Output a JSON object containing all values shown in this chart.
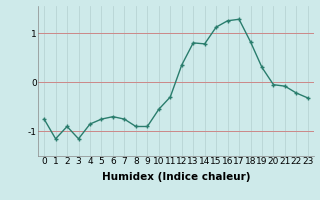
{
  "x": [
    0,
    1,
    2,
    3,
    4,
    5,
    6,
    7,
    8,
    9,
    10,
    11,
    12,
    13,
    14,
    15,
    16,
    17,
    18,
    19,
    20,
    21,
    22,
    23
  ],
  "y": [
    -0.75,
    -1.15,
    -0.9,
    -1.15,
    -0.85,
    -0.75,
    -0.7,
    -0.75,
    -0.9,
    -0.9,
    -0.55,
    -0.3,
    0.35,
    0.8,
    0.78,
    1.12,
    1.25,
    1.28,
    0.82,
    0.3,
    -0.05,
    -0.08,
    -0.22,
    -0.32
  ],
  "xlabel": "Humidex (Indice chaleur)",
  "yticks": [
    -1,
    0,
    1
  ],
  "xlim": [
    -0.5,
    23.5
  ],
  "ylim": [
    -1.5,
    1.55
  ],
  "line_color": "#2a7d6d",
  "marker": "+",
  "bg_color": "#ceeaea",
  "grid_color": "#b8d4d4",
  "xlabel_fontsize": 7.5,
  "tick_fontsize": 6.5,
  "linewidth": 1.0,
  "markersize": 3.5,
  "markeredgewidth": 1.0
}
